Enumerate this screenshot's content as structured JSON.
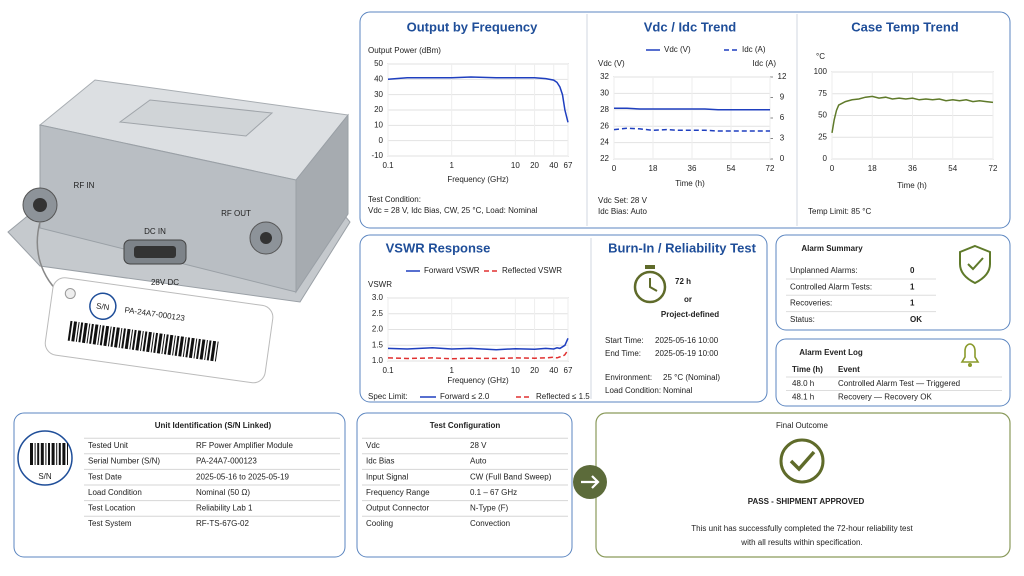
{
  "product": {
    "rf_in": "RF IN",
    "dc_in": "DC IN",
    "rf_out": "RF OUT",
    "dc_voltage": "28V DC",
    "tag_badge": "S/N",
    "tag_serial": "PA-24A7-000123"
  },
  "chart_data": [
    {
      "type": "line",
      "title": "Output by Frequency",
      "y_label": "Output Power (dBm)",
      "x_label": "Frequency (GHz)",
      "x_scale": "log",
      "x": [
        0.1,
        0.2,
        0.5,
        1,
        2,
        5,
        10,
        20,
        30,
        40,
        45,
        50,
        55,
        60,
        67
      ],
      "series": [
        {
          "color": "#1f3fbf",
          "values": [
            40,
            41,
            41,
            41,
            41.5,
            41,
            41,
            41,
            40.5,
            39.5,
            38,
            35,
            30,
            20,
            12
          ]
        }
      ],
      "xlim": [
        0.1,
        67
      ],
      "xticks": [
        0.1,
        1,
        10,
        20,
        40,
        67
      ],
      "ylim": [
        -10,
        50
      ],
      "yticks": [
        -10,
        0,
        10,
        20,
        30,
        40,
        50
      ],
      "grid": true,
      "notes": [
        "Test Condition:",
        "Vdc = 28 V, Idc Bias, CW, 25 °C, Load: Nominal"
      ]
    },
    {
      "type": "line",
      "title": "Vdc / Idc Trend",
      "y_label": "Vdc (V)",
      "y2_label": "Idc (A)",
      "x_label": "Time (h)",
      "x": [
        0,
        6,
        12,
        18,
        24,
        30,
        36,
        42,
        48,
        54,
        60,
        66,
        72
      ],
      "series": [
        {
          "name": "Vdc (V)",
          "color": "#1f3fbf",
          "line_style": "solid",
          "values": [
            28.2,
            28.2,
            28.1,
            28.1,
            28.1,
            28.1,
            28.1,
            28.1,
            28.0,
            28.0,
            28.0,
            28.0,
            28.0
          ]
        },
        {
          "name": "Idc (A)",
          "color": "#1f3fbf",
          "line_style": "dashed",
          "axis": "y2",
          "values": [
            4.3,
            4.5,
            4.4,
            4.2,
            4.3,
            4.2,
            4.2,
            4.2,
            4.1,
            4.1,
            4.1,
            4.1,
            4.1
          ]
        }
      ],
      "xlim": [
        0,
        72
      ],
      "xticks": [
        0,
        18,
        36,
        54,
        72
      ],
      "ylim": [
        22,
        32
      ],
      "yticks": [
        22,
        24,
        26,
        28,
        30,
        32
      ],
      "y2lim": [
        0,
        12
      ],
      "y2ticks": [
        0,
        3,
        6,
        9,
        12
      ],
      "grid": true,
      "legend": "top",
      "notes": [
        "Vdc Set: 28 V",
        "Idc Bias:  Auto"
      ]
    },
    {
      "type": "line",
      "title": "Case Temp Trend",
      "y_label": "°C",
      "x_label": "Time (h)",
      "x": [
        0,
        1,
        2,
        3,
        6,
        9,
        12,
        15,
        18,
        21,
        24,
        27,
        30,
        33,
        36,
        39,
        42,
        45,
        48,
        51,
        54,
        57,
        60,
        63,
        66,
        69,
        72
      ],
      "series": [
        {
          "color": "#5f7a2a",
          "values": [
            30,
            45,
            56,
            62,
            66,
            68,
            69,
            71,
            72,
            70,
            71,
            69,
            70,
            69,
            70,
            68,
            69,
            68,
            69,
            67,
            68,
            67,
            68,
            66,
            67,
            66,
            65
          ]
        }
      ],
      "xlim": [
        0,
        72
      ],
      "xticks": [
        0,
        18,
        36,
        54,
        72
      ],
      "ylim": [
        0,
        100
      ],
      "yticks": [
        0,
        25,
        50,
        75,
        100
      ],
      "grid": true,
      "notes": [
        "Temp Limit: 85 °C"
      ]
    },
    {
      "type": "line",
      "title": "VSWR Response",
      "y_label": "VSWR",
      "x_label": "Frequency (GHz)",
      "x_scale": "log",
      "x": [
        0.1,
        0.2,
        0.5,
        1,
        2,
        5,
        10,
        20,
        30,
        40,
        45,
        50,
        55,
        60,
        67
      ],
      "series": [
        {
          "name": "Forward VSWR",
          "color": "#1f3fbf",
          "line_style": "solid",
          "values": [
            1.4,
            1.38,
            1.42,
            1.38,
            1.4,
            1.36,
            1.39,
            1.37,
            1.4,
            1.38,
            1.42,
            1.4,
            1.45,
            1.5,
            1.72
          ]
        },
        {
          "name": "Reflected VSWR",
          "color": "#e03030",
          "line_style": "dashed",
          "values": [
            1.1,
            1.08,
            1.1,
            1.07,
            1.09,
            1.08,
            1.1,
            1.09,
            1.1,
            1.12,
            1.1,
            1.13,
            1.15,
            1.2,
            1.35
          ]
        }
      ],
      "xlim": [
        0.1,
        67
      ],
      "xticks": [
        0.1,
        1,
        10,
        20,
        40,
        67
      ],
      "ylim": [
        1,
        3
      ],
      "yticks": [
        {
          "value": 1,
          "label": "1.0"
        },
        1.5,
        {
          "value": 2,
          "label": "2.0"
        },
        2.5,
        {
          "value": 3,
          "label": "3.0"
        }
      ],
      "grid": true,
      "legend": "top",
      "spec_label": "Spec Limit:",
      "spec_limits": [
        "Forward ≤ 2.0",
        "Reflected ≤ 1.5"
      ]
    }
  ],
  "burn_in": {
    "title": "Burn-In / Reliability Test",
    "duration": "72 h",
    "or": "or",
    "alternative": "Project-defined",
    "rows": [
      [
        "Start Time:",
        "2025-05-16 10:00"
      ],
      [
        "End Time:",
        "2025-05-19 10:00"
      ],
      [
        "Environment:",
        "25 °C (Nominal)"
      ],
      [
        "Load Condition:",
        "Nominal"
      ]
    ]
  },
  "alarm_summary": {
    "title": "Alarm Summary",
    "rows": [
      [
        "Unplanned Alarms:",
        0
      ],
      [
        "Controlled Alarm Tests:",
        1
      ],
      [
        "Recoveries:",
        1
      ],
      [
        "Status:",
        "OK"
      ]
    ]
  },
  "alarm_log": {
    "title": "Alarm Event Log",
    "header": [
      "Time (h)",
      "Event"
    ],
    "rows": [
      [
        "48.0 h",
        "Controlled Alarm Test — Triggered"
      ],
      [
        "48.1 h",
        "Recovery — Recovery OK"
      ]
    ]
  },
  "unit_identification": {
    "title": "Unit Identification (S/N Linked)",
    "icon_label": "S/N",
    "rows": [
      [
        "Tested Unit",
        "RF Power Amplifier Module"
      ],
      [
        "Serial Number (S/N)",
        "PA-24A7-000123"
      ],
      [
        "Test Date",
        "2025-05-16 to 2025-05-19"
      ],
      [
        "Load Condition",
        "Nominal (50 Ω)"
      ],
      [
        "Test Location",
        "Reliability Lab 1"
      ],
      [
        "Test System",
        "RF-TS-67G-02"
      ]
    ]
  },
  "test_configuration": {
    "title": "Test Configuration",
    "rows": [
      [
        "Vdc",
        "28 V"
      ],
      [
        "Idc Bias",
        "Auto"
      ],
      [
        "Input Signal",
        "CW (Full Band Sweep)"
      ],
      [
        "Frequency Range",
        "0.1 – 67 GHz"
      ],
      [
        "Output Connector",
        "N-Type (F)"
      ],
      [
        "Cooling",
        "Convection"
      ]
    ]
  },
  "final_outcome": {
    "title": "Final Outcome",
    "verdict": "PASS - SHIPMENT APPROVED",
    "message": [
      "This unit has successfully completed the 72-hour reliability test",
      "with all results within specification."
    ]
  }
}
